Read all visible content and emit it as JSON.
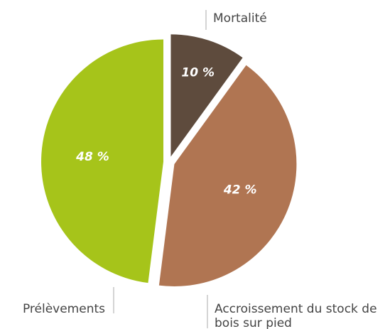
{
  "chart_data": {
    "type": "pie",
    "categories": [
      "Mortalité",
      "Accroissement du stock de bois sur pied",
      "Prélèvements"
    ],
    "values": [
      10,
      42,
      48
    ],
    "value_labels": [
      "10 %",
      "42 %",
      "48 %"
    ],
    "colors": [
      "#5e4b3d",
      "#b07552",
      "#a6c41a"
    ]
  }
}
